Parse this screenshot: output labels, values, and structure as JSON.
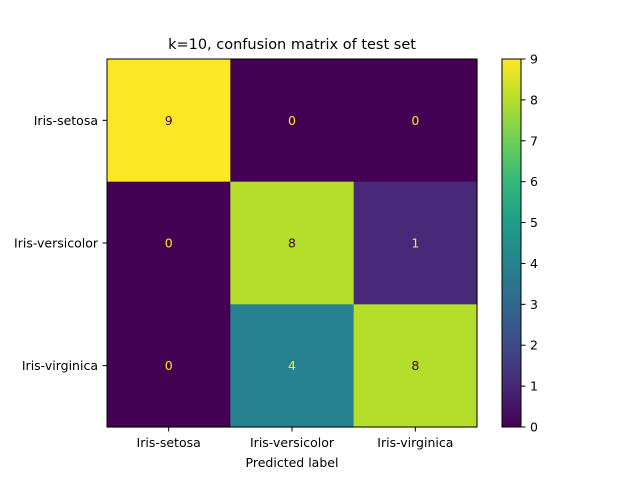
{
  "chart_data": {
    "type": "heatmap",
    "title": "k=10, confusion matrix of test set",
    "xlabel": "Predicted label",
    "ylabel": "",
    "x_categories": [
      "Iris-setosa",
      "Iris-versicolor",
      "Iris-virginica"
    ],
    "y_categories": [
      "Iris-setosa",
      "Iris-versicolor",
      "Iris-virginica"
    ],
    "values": [
      [
        9,
        0,
        0
      ],
      [
        0,
        8,
        1
      ],
      [
        0,
        4,
        8
      ]
    ],
    "colormap": "viridis",
    "colorbar": {
      "min": 0,
      "max": 9,
      "ticks": [
        0,
        1,
        2,
        3,
        4,
        5,
        6,
        7,
        8,
        9
      ]
    },
    "annotation_colors": {
      "on_dark": "#fde725",
      "on_light": "#440154"
    },
    "grid": false
  }
}
